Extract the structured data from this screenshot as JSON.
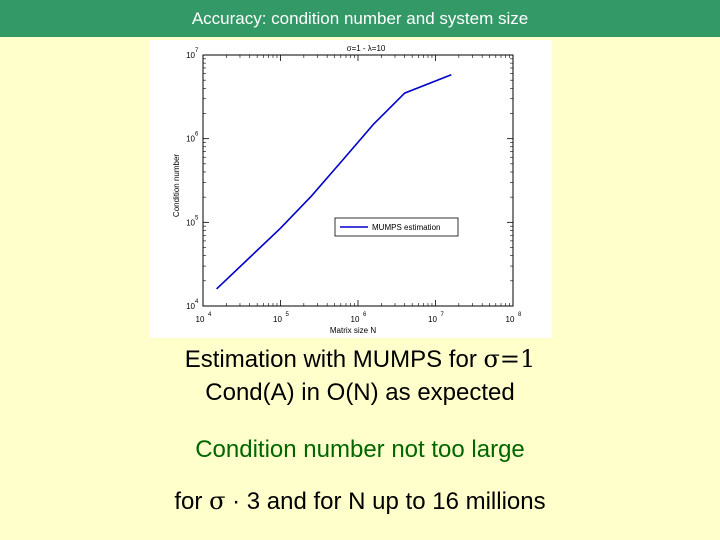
{
  "slide": {
    "title": "Accuracy: condition number and system size",
    "caption_line1_prefix": "Estimation with MUMPS for ",
    "caption_line1_symbol": "σ=1",
    "caption_line2": "Cond(A) in O(N) as expected",
    "note_line1": "Condition number not too large",
    "note_line2_prefix": "for ",
    "note_line2_symbol": "σ",
    "note_line2_suffix": " · 3 and for N up to 16 millions"
  },
  "colors": {
    "title_bar": "#339966",
    "background": "#ffffcc",
    "note_text": "#006600",
    "series_line": "#0000cc"
  },
  "chart_data": {
    "type": "line",
    "title": "σ=1 - λ=10",
    "xlabel": "Matrix size N",
    "ylabel": "Condition number",
    "xscale": "log",
    "yscale": "log",
    "xlim": [
      10000,
      100000000
    ],
    "ylim": [
      10000,
      10000000
    ],
    "x_ticks": [
      {
        "value": 10000,
        "base": "10",
        "exp": "4"
      },
      {
        "value": 100000,
        "base": "10",
        "exp": "5"
      },
      {
        "value": 1000000,
        "base": "10",
        "exp": "6"
      },
      {
        "value": 10000000,
        "base": "10",
        "exp": "7"
      },
      {
        "value": 100000000,
        "base": "10",
        "exp": "8"
      }
    ],
    "y_ticks": [
      {
        "value": 10000,
        "base": "10",
        "exp": "4"
      },
      {
        "value": 100000,
        "base": "10",
        "exp": "5"
      },
      {
        "value": 1000000,
        "base": "10",
        "exp": "6"
      },
      {
        "value": 10000000,
        "base": "10",
        "exp": "7"
      }
    ],
    "grid": false,
    "legend_position": "center-right",
    "series": [
      {
        "name": "MUMPS estimation",
        "x": [
          15000,
          40000,
          100000,
          250000,
          630000,
          1600000,
          4000000,
          16000000
        ],
        "y": [
          16000,
          38000,
          85000,
          205000,
          550000,
          1500000,
          3500000,
          5800000
        ]
      }
    ]
  }
}
